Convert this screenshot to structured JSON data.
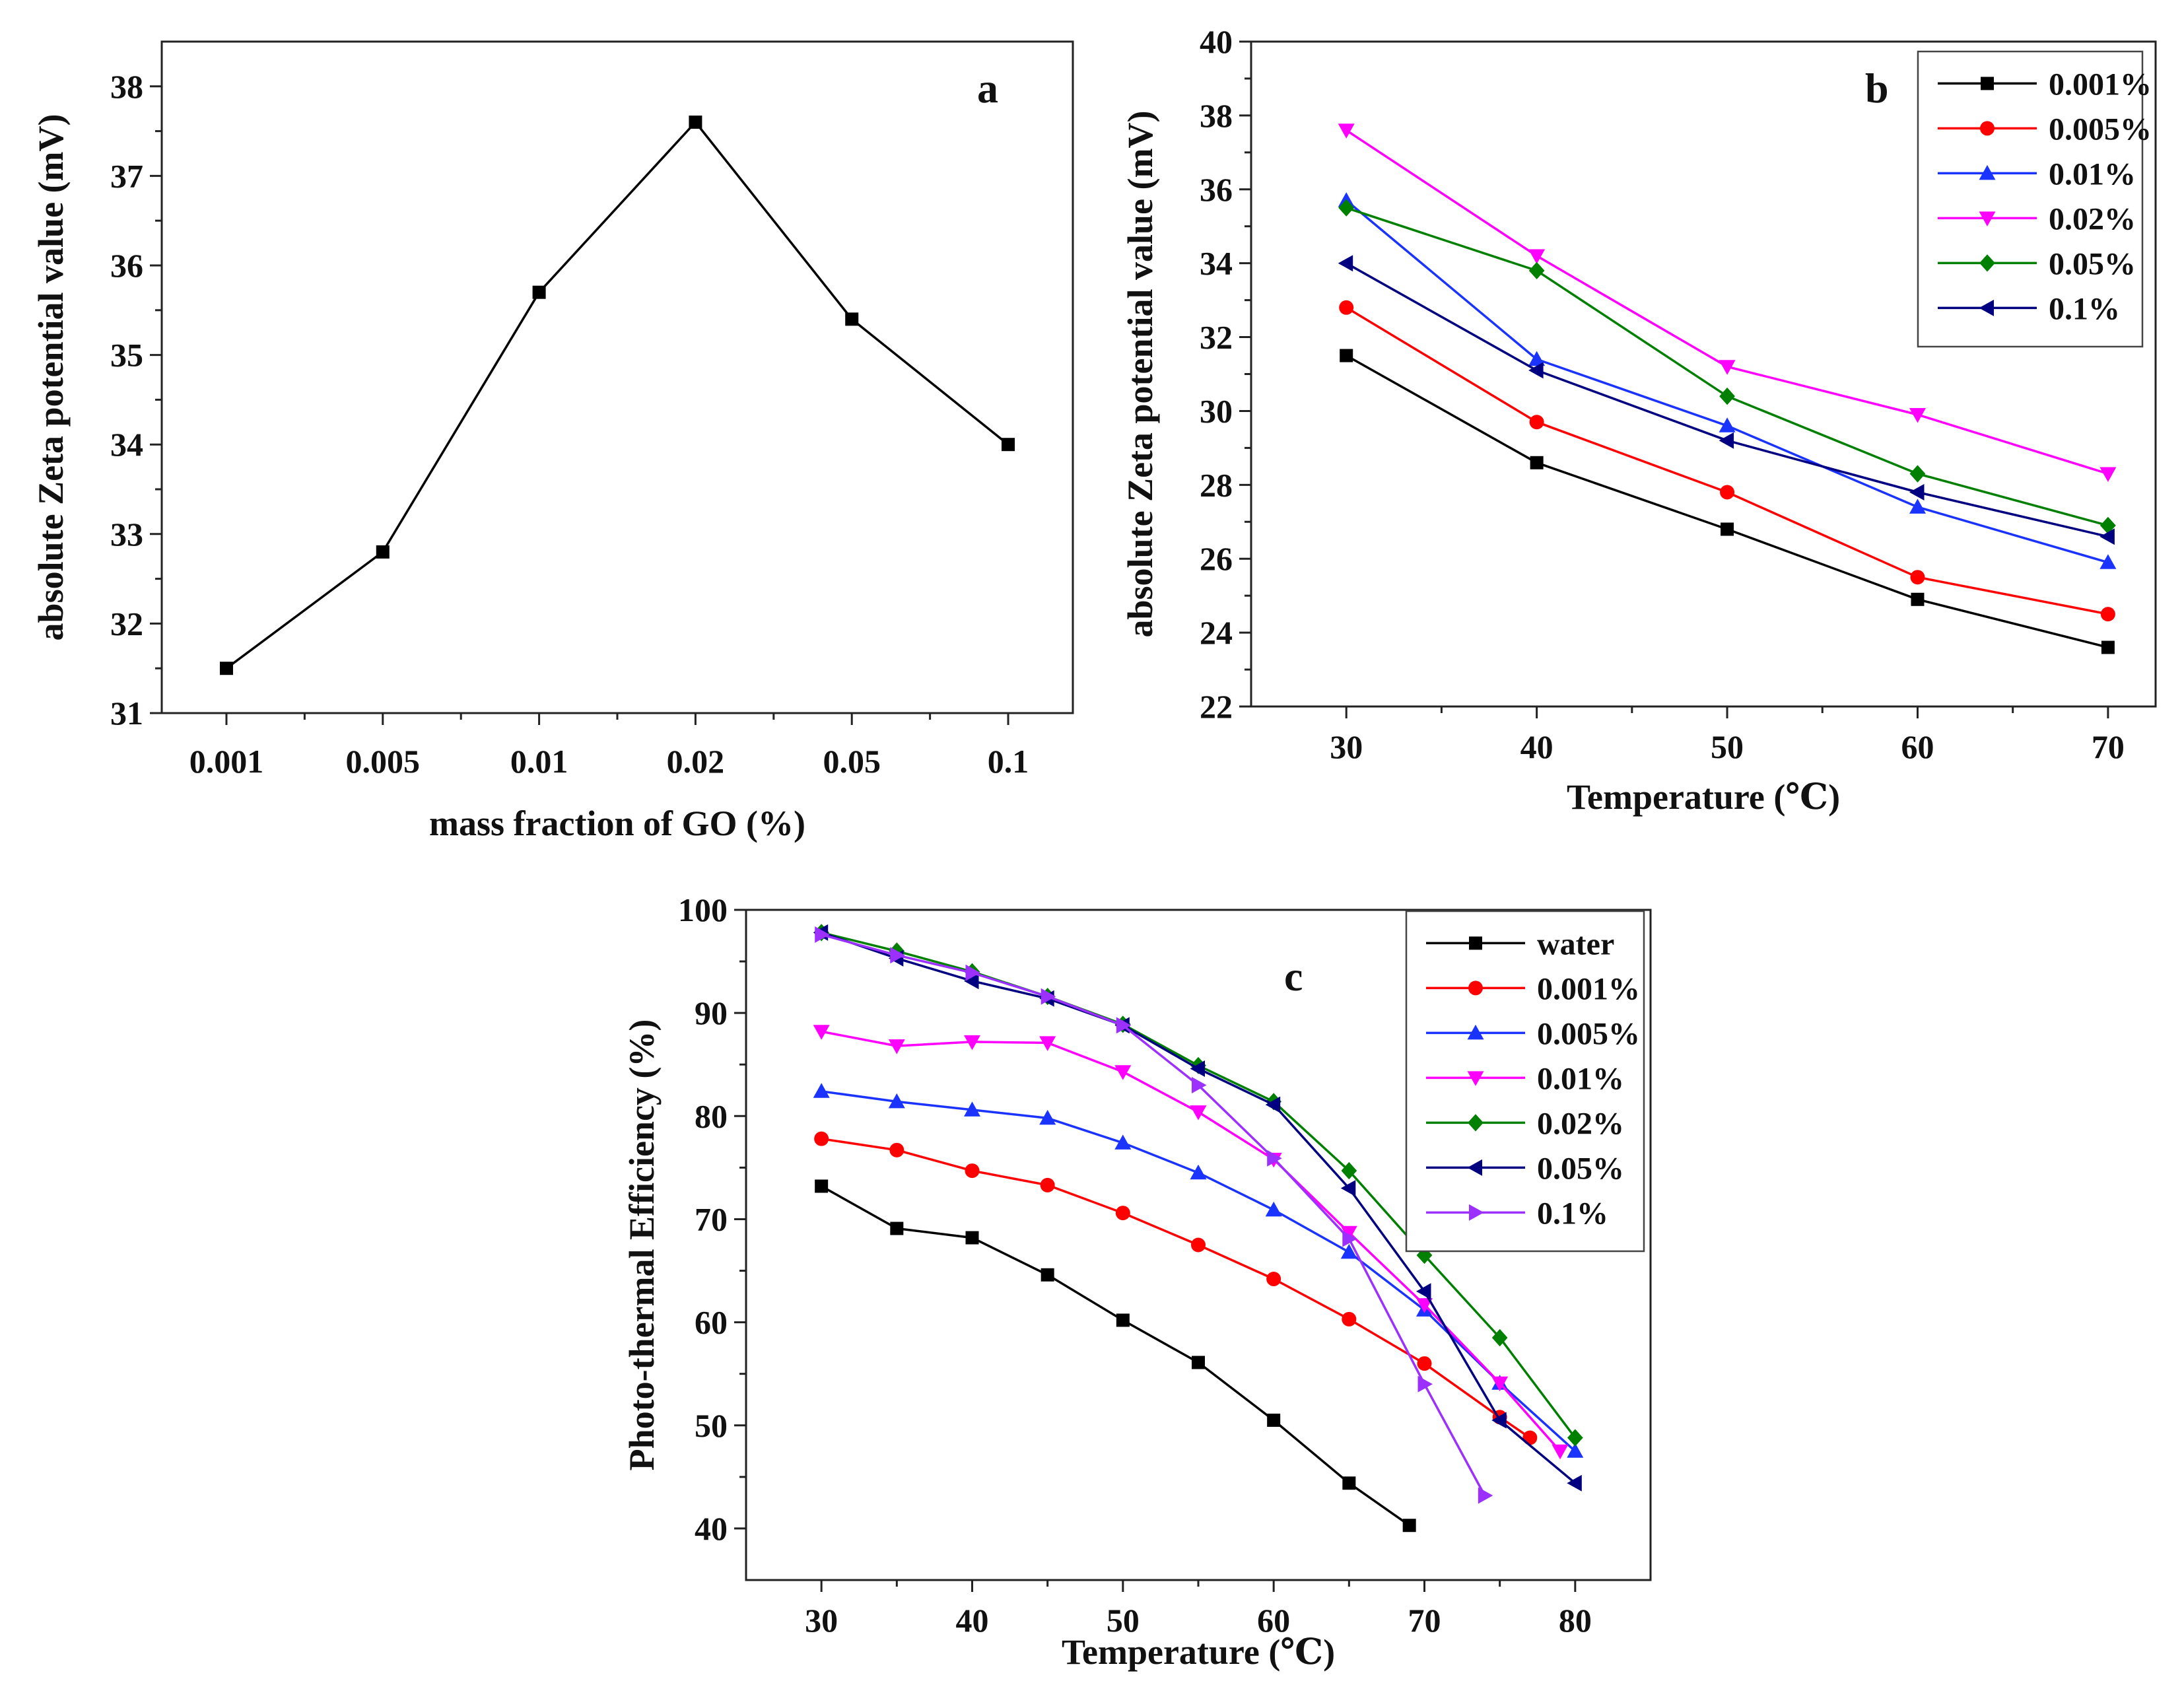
{
  "chart_data": [
    {
      "panel": "a",
      "type": "line",
      "panel_label": "a",
      "title": "",
      "xlabel": "mass fraction of GO (%)",
      "ylabel": "absolute Zeta potential value (mV)",
      "categories": [
        "0.001",
        "0.005",
        "0.01",
        "0.02",
        "0.05",
        "0.1"
      ],
      "ylim": [
        31,
        38.5
      ],
      "yticks": [
        31,
        32,
        33,
        34,
        35,
        36,
        37,
        38
      ],
      "series": [
        {
          "name": "",
          "color": "#000000",
          "marker": "square",
          "values": [
            31.5,
            32.8,
            35.7,
            37.6,
            35.4,
            34.0
          ]
        }
      ]
    },
    {
      "panel": "b",
      "type": "line",
      "panel_label": "b",
      "title": "",
      "xlabel": "Temperature (℃)",
      "ylabel": "absolute Zeta potential value (mV)",
      "x": [
        30,
        40,
        50,
        60,
        70
      ],
      "xlim": [
        25,
        72.5
      ],
      "xticks": [
        30,
        40,
        50,
        60,
        70
      ],
      "ylim": [
        22,
        40
      ],
      "yticks": [
        22,
        24,
        26,
        28,
        30,
        32,
        34,
        36,
        38,
        40
      ],
      "legend_position": "top-right",
      "series": [
        {
          "name": "0.001%",
          "color": "#000000",
          "marker": "square",
          "values": [
            31.5,
            28.6,
            26.8,
            24.9,
            23.6
          ]
        },
        {
          "name": "0.005%",
          "color": "#ff0000",
          "marker": "circle",
          "values": [
            32.8,
            29.7,
            27.8,
            25.5,
            24.5
          ]
        },
        {
          "name": "0.01%",
          "color": "#1a33ff",
          "marker": "triangle-up",
          "values": [
            35.7,
            31.4,
            29.6,
            27.4,
            25.9
          ]
        },
        {
          "name": "0.02%",
          "color": "#ff00ff",
          "marker": "triangle-down",
          "values": [
            37.6,
            34.2,
            31.2,
            29.9,
            28.3
          ]
        },
        {
          "name": "0.05%",
          "color": "#008000",
          "marker": "diamond",
          "values": [
            35.5,
            33.8,
            30.4,
            28.3,
            26.9
          ]
        },
        {
          "name": "0.1%",
          "color": "#000080",
          "marker": "triangle-left",
          "values": [
            34.0,
            31.1,
            29.2,
            27.8,
            26.6
          ]
        }
      ]
    },
    {
      "panel": "c",
      "type": "line",
      "panel_label": "c",
      "title": "",
      "xlabel": "Temperature (℃)",
      "ylabel": "Photo-thermal Efficiency (%)",
      "xlim": [
        25,
        85
      ],
      "xticks": [
        30,
        40,
        50,
        60,
        70,
        80
      ],
      "ylim": [
        35,
        100
      ],
      "yticks": [
        40,
        50,
        60,
        70,
        80,
        90,
        100
      ],
      "legend_position": "top-right",
      "series": [
        {
          "name": "water",
          "color": "#000000",
          "marker": "square",
          "x": [
            30,
            35,
            40,
            45,
            50,
            55,
            60,
            65,
            69
          ],
          "values": [
            73.2,
            69.1,
            68.2,
            64.6,
            60.2,
            56.1,
            50.5,
            44.4,
            40.3
          ]
        },
        {
          "name": "0.001%",
          "color": "#ff0000",
          "marker": "circle",
          "x": [
            30,
            35,
            40,
            45,
            50,
            55,
            60,
            65,
            70,
            75,
            77
          ],
          "values": [
            77.8,
            76.7,
            74.7,
            73.3,
            70.6,
            67.5,
            64.2,
            60.3,
            56.0,
            50.8,
            48.8
          ]
        },
        {
          "name": "0.005%",
          "color": "#1a33ff",
          "marker": "triangle-up",
          "x": [
            30,
            35,
            40,
            45,
            50,
            55,
            60,
            65,
            70,
            75,
            80
          ],
          "values": [
            82.4,
            81.4,
            80.6,
            79.8,
            77.4,
            74.5,
            70.9,
            66.8,
            61.2,
            54.1,
            47.5
          ]
        },
        {
          "name": "0.01%",
          "color": "#ff00ff",
          "marker": "triangle-down",
          "x": [
            30,
            35,
            40,
            45,
            50,
            55,
            60,
            65,
            70,
            75,
            79
          ],
          "values": [
            88.2,
            86.8,
            87.2,
            87.1,
            84.3,
            80.4,
            75.8,
            68.7,
            61.7,
            54.1,
            47.5
          ]
        },
        {
          "name": "0.02%",
          "color": "#008000",
          "marker": "diamond",
          "x": [
            30,
            35,
            40,
            45,
            50,
            55,
            60,
            65,
            70,
            75,
            80
          ],
          "values": [
            97.8,
            96.0,
            94.0,
            91.6,
            88.9,
            84.9,
            81.4,
            74.7,
            66.5,
            58.5,
            48.8
          ]
        },
        {
          "name": "0.05%",
          "color": "#000080",
          "marker": "triangle-left",
          "x": [
            30,
            35,
            40,
            45,
            50,
            55,
            60,
            65,
            70,
            75,
            80
          ],
          "values": [
            97.8,
            95.3,
            93.1,
            91.4,
            88.8,
            84.6,
            81.1,
            73.0,
            63.0,
            50.5,
            44.4
          ]
        },
        {
          "name": "0.1%",
          "color": "#9b30ff",
          "marker": "triangle-right",
          "x": [
            30,
            35,
            40,
            45,
            50,
            55,
            60,
            65,
            70,
            74
          ],
          "values": [
            97.6,
            95.6,
            93.9,
            91.6,
            88.8,
            83.0,
            75.9,
            68.1,
            54.0,
            43.2
          ]
        }
      ]
    }
  ]
}
